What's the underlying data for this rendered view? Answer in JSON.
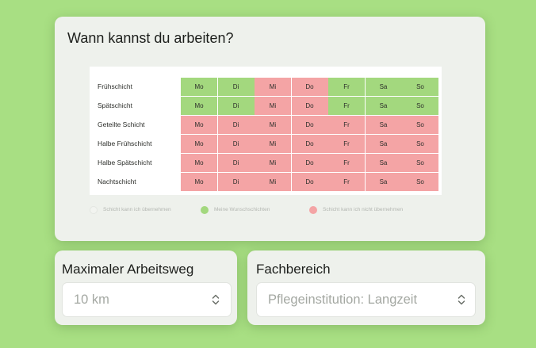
{
  "availability": {
    "title": "Wann kannst du arbeiten?",
    "day_labels": [
      "Mo",
      "Di",
      "Mi",
      "Do",
      "Fr",
      "Sa",
      "So"
    ],
    "rows": [
      {
        "label": "Frühschicht",
        "status": [
          "green",
          "green",
          "red",
          "red",
          "green",
          "green",
          "green"
        ]
      },
      {
        "label": "Spätschicht",
        "status": [
          "green",
          "green",
          "red",
          "red",
          "green",
          "green",
          "green"
        ]
      },
      {
        "label": "Geteilte Schicht",
        "status": [
          "red",
          "red",
          "red",
          "red",
          "red",
          "red",
          "red"
        ]
      },
      {
        "label": "Halbe Frühschicht",
        "status": [
          "red",
          "red",
          "red",
          "red",
          "red",
          "red",
          "red"
        ]
      },
      {
        "label": "Halbe Spätschicht",
        "status": [
          "red",
          "red",
          "red",
          "red",
          "red",
          "red",
          "red"
        ]
      },
      {
        "label": "Nachtschicht",
        "status": [
          "red",
          "red",
          "red",
          "red",
          "red",
          "red",
          "red"
        ]
      }
    ],
    "legend": [
      {
        "label": "Schicht kann ich übernehmen",
        "color": "#f2f4f0"
      },
      {
        "label": "Meine Wunschschichten",
        "color": "#a3d87e"
      },
      {
        "label": "Schicht kann ich nicht übernehmen",
        "color": "#f4a4a5"
      }
    ],
    "colors": {
      "green": "#a3d87e",
      "red": "#f4a4a5"
    }
  },
  "commute": {
    "title": "Maximaler Arbeitsweg",
    "value": "10 km",
    "icon": "chevron-up-down-icon"
  },
  "department": {
    "title": "Fachbereich",
    "value": "Pflegeinstitution: Langzeit",
    "icon": "chevron-up-down-icon"
  }
}
